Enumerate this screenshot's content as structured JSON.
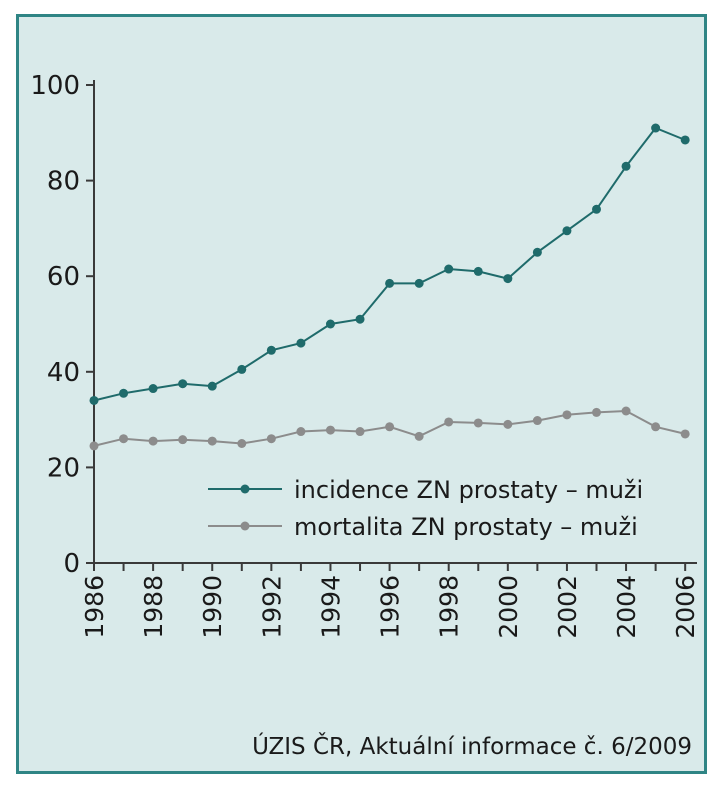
{
  "chart_data": {
    "type": "line",
    "title": "",
    "xlabel": "",
    "ylabel": "",
    "x": [
      1986,
      1987,
      1988,
      1989,
      1990,
      1991,
      1992,
      1993,
      1994,
      1995,
      1996,
      1997,
      1998,
      1999,
      2000,
      2001,
      2002,
      2003,
      2004,
      2005,
      2006
    ],
    "xlim": [
      1986,
      2006.4
    ],
    "ylim": [
      0,
      100
    ],
    "x_ticks": [
      "1986",
      "1988",
      "1990",
      "1992",
      "1994",
      "1996",
      "1998",
      "2000",
      "2002",
      "2004",
      "2006"
    ],
    "y_ticks": [
      "0",
      "20",
      "40",
      "60",
      "80",
      "100"
    ],
    "grid": false,
    "legend_position": "lower-right",
    "series": [
      {
        "name": "incidence ZN prostaty – muži",
        "color": "#1f6b6b",
        "values": [
          34.0,
          35.5,
          36.5,
          37.5,
          37.0,
          40.5,
          44.5,
          46.0,
          50.0,
          51.0,
          58.5,
          58.5,
          61.5,
          61.0,
          59.5,
          65.0,
          69.5,
          74.0,
          83.0,
          91.0,
          88.5
        ]
      },
      {
        "name": "mortalita ZN prostaty – muži",
        "color": "#8c8c8c",
        "values": [
          24.5,
          26.0,
          25.5,
          25.8,
          25.5,
          25.0,
          26.0,
          27.5,
          27.8,
          27.5,
          28.5,
          26.5,
          29.5,
          29.3,
          29.0,
          29.8,
          31.0,
          31.5,
          31.8,
          28.5,
          27.0
        ]
      }
    ]
  },
  "source_note": "ÚZIS ČR, Aktuální informace č. 6/2009"
}
